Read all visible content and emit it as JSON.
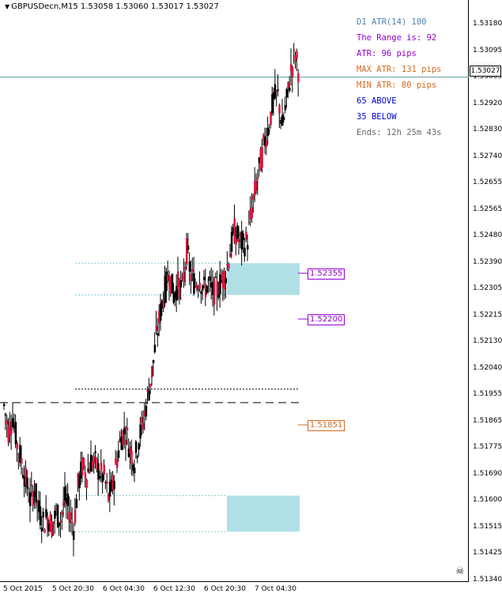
{
  "header": {
    "symbol_line": "GBPUSDecn,M15  1.53058 1.53060 1.53017 1.53027"
  },
  "info_panel": [
    {
      "text": "D1 ATR(14) 100",
      "color": "#4682b4"
    },
    {
      "text": "The Range is: 92",
      "color": "#9400d3"
    },
    {
      "text": "ATR: 96 pips",
      "color": "#9400d3"
    },
    {
      "text": "MAX ATR: 131 pips",
      "color": "#d2691e"
    },
    {
      "text": "MIN ATR: 80 pips",
      "color": "#d2691e"
    },
    {
      "text": "65 ABOVE",
      "color": "#0000cd"
    },
    {
      "text": "35 BELOW",
      "color": "#0000cd"
    },
    {
      "text": "Ends: 12h 25m 43s",
      "color": "#696969"
    }
  ],
  "price_axis": {
    "labels": [
      "1.53180",
      "1.53095",
      "1.53005",
      "1.52920",
      "1.52830",
      "1.52740",
      "1.52655",
      "1.52565",
      "1.52480",
      "1.52390",
      "1.52305",
      "1.52215",
      "1.52130",
      "1.52040",
      "1.51955",
      "1.51865",
      "1.51775",
      "1.51690",
      "1.51600",
      "1.51515",
      "1.51425",
      "1.51340"
    ],
    "current_price": "1.53027"
  },
  "time_axis": {
    "labels": [
      "5 Oct 2015",
      "5 Oct 20:30",
      "6 Oct 04:30",
      "6 Oct 12:30",
      "6 Oct 20:30",
      "7 Oct 04:30"
    ]
  },
  "levels": {
    "upper_zone_top": "1.52355",
    "upper_zone_mid": "1.52200",
    "dashed_level": "1.51851"
  },
  "chart_data": {
    "type": "candlestick",
    "title": "GBPUSDecn,M15",
    "timeframe": "M15",
    "ohlc_header": {
      "open": 1.53058,
      "high": 1.5306,
      "low": 1.53017,
      "close": 1.53027
    },
    "ylim": [
      1.513,
      1.5322
    ],
    "close_path": [
      1.5184,
      1.5175,
      1.518,
      1.517,
      1.5164,
      1.5157,
      1.515,
      1.5154,
      1.5146,
      1.5142,
      1.5144,
      1.5141,
      1.5145,
      1.5143,
      1.515,
      1.5146,
      1.514,
      1.5155,
      1.5162,
      1.5159,
      1.5164,
      1.5163,
      1.516,
      1.5158,
      1.5151,
      1.5155,
      1.5165,
      1.5173,
      1.5175,
      1.5168,
      1.5164,
      1.5172,
      1.5178,
      1.5187,
      1.5196,
      1.5208,
      1.5218,
      1.5226,
      1.5232,
      1.5224,
      1.5228,
      1.5226,
      1.524,
      1.5231,
      1.5228,
      1.523,
      1.5226,
      1.5228,
      1.5225,
      1.5226,
      1.5229,
      1.5232,
      1.524,
      1.5247,
      1.5244,
      1.5242,
      1.5244,
      1.5255,
      1.5264,
      1.5272,
      1.528,
      1.5286,
      1.5295,
      1.5296,
      1.5285,
      1.5294,
      1.5305,
      1.5311,
      1.5303
    ],
    "zones": [
      {
        "top": 1.52355,
        "bottom": 1.5224,
        "fill": "#b0e0e6"
      },
      {
        "top": 1.51515,
        "bottom": 1.51385,
        "fill": "#b0e0e6"
      }
    ],
    "horizontal_lines": [
      {
        "value": 1.51851,
        "style": "dashed",
        "color": "#000000"
      },
      {
        "value": 1.519,
        "style": "dotted",
        "color": "#000000"
      },
      {
        "value": 1.53027,
        "style": "solid",
        "color": "#5f9ea0"
      }
    ]
  }
}
